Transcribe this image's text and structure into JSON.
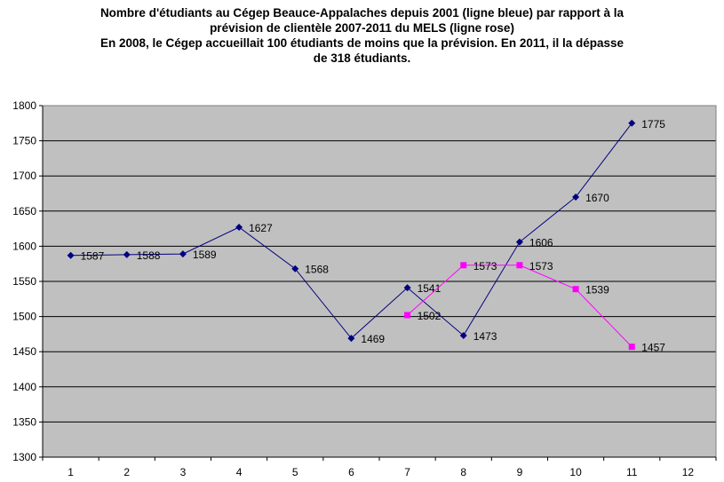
{
  "title_lines": [
    "Nombre d'étudiants au Cégep Beauce-Appalaches depuis 2001 (ligne bleue) par rapport à la",
    "prévision de clientèle 2007-2011 du MELS (ligne rose)",
    "En 2008, le Cégep accueillait 100 étudiants de moins que la prévision.  En 2011, il la dépasse",
    "de 318 étudiants."
  ],
  "chart_data": {
    "type": "line",
    "x": [
      1,
      2,
      3,
      4,
      5,
      6,
      7,
      8,
      9,
      10,
      11,
      12
    ],
    "xlim": [
      0.5,
      12.5
    ],
    "ylim": [
      1300,
      1800
    ],
    "yticks": [
      1300,
      1350,
      1400,
      1450,
      1500,
      1550,
      1600,
      1650,
      1700,
      1750,
      1800
    ],
    "grid": true,
    "plot_background": "#c0c0c0",
    "series": [
      {
        "color": "#000080",
        "marker": "diamond",
        "points": [
          {
            "x": 1,
            "y": 1587
          },
          {
            "x": 2,
            "y": 1588
          },
          {
            "x": 3,
            "y": 1589
          },
          {
            "x": 4,
            "y": 1627
          },
          {
            "x": 5,
            "y": 1568
          },
          {
            "x": 6,
            "y": 1469
          },
          {
            "x": 7,
            "y": 1541
          },
          {
            "x": 8,
            "y": 1473
          },
          {
            "x": 9,
            "y": 1606
          },
          {
            "x": 10,
            "y": 1670
          },
          {
            "x": 11,
            "y": 1775
          }
        ]
      },
      {
        "color": "#ff00ff",
        "marker": "square",
        "points": [
          {
            "x": 7,
            "y": 1502
          },
          {
            "x": 8,
            "y": 1573
          },
          {
            "x": 9,
            "y": 1573
          },
          {
            "x": 10,
            "y": 1539
          },
          {
            "x": 11,
            "y": 1457
          }
        ]
      }
    ]
  }
}
